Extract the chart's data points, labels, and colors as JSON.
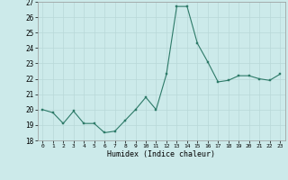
{
  "x": [
    0,
    1,
    2,
    3,
    4,
    5,
    6,
    7,
    8,
    9,
    10,
    11,
    12,
    13,
    14,
    15,
    16,
    17,
    18,
    19,
    20,
    21,
    22,
    23
  ],
  "y": [
    20.0,
    19.8,
    19.1,
    19.9,
    19.1,
    19.1,
    18.5,
    18.6,
    19.3,
    20.0,
    20.8,
    20.0,
    22.3,
    26.7,
    26.7,
    24.3,
    23.1,
    21.8,
    21.9,
    22.2,
    22.2,
    22.0,
    21.9,
    22.3
  ],
  "line_color": "#2d7a68",
  "marker_color": "#2d7a68",
  "bg_color": "#cceaea",
  "grid_color": "#b8d8d8",
  "xlabel": "Humidex (Indice chaleur)",
  "ylim": [
    18,
    27
  ],
  "xlim": [
    -0.5,
    23.5
  ],
  "yticks": [
    18,
    19,
    20,
    21,
    22,
    23,
    24,
    25,
    26,
    27
  ],
  "xticks": [
    0,
    1,
    2,
    3,
    4,
    5,
    6,
    7,
    8,
    9,
    10,
    11,
    12,
    13,
    14,
    15,
    16,
    17,
    18,
    19,
    20,
    21,
    22,
    23
  ]
}
